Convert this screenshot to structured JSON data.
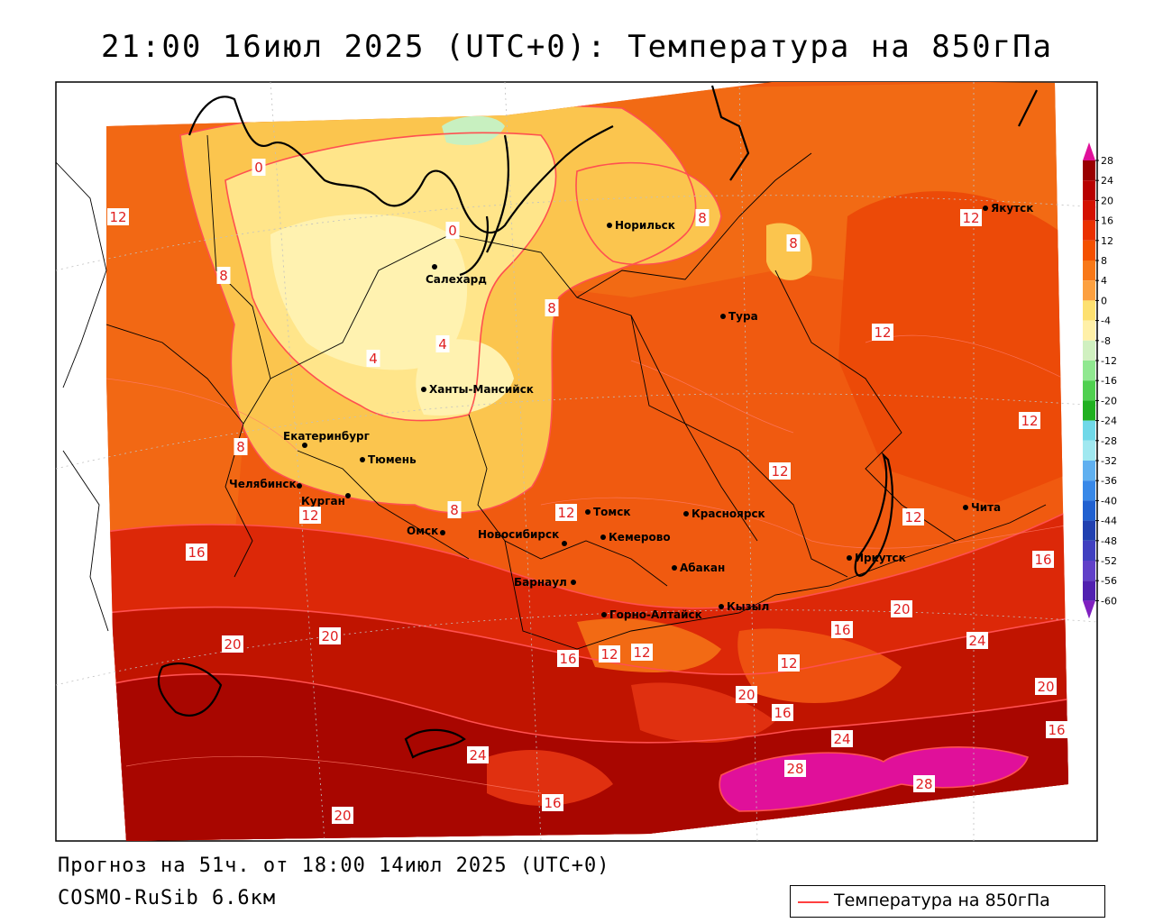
{
  "title": "21:00 16июл 2025 (UTC+0): Температура на 850гПа",
  "forecast_line": "Прогноз на 51ч. от 18:00 14июл 2025 (UTC+0)",
  "model_line": "COSMO-RuSib 6.6км",
  "legend": {
    "label": "Температура на 850гПа",
    "line_color": "#ff4040"
  },
  "colorbar": {
    "ticks": [
      "28",
      "24",
      "20",
      "16",
      "12",
      "8",
      "4",
      "0",
      "-4",
      "-8",
      "-12",
      "-16",
      "-20",
      "-24",
      "-28",
      "-32",
      "-36",
      "-40",
      "-44",
      "-48",
      "-52",
      "-56",
      "-60"
    ],
    "colors": [
      "#9a0000",
      "#b80000",
      "#d41000",
      "#ea3000",
      "#f45000",
      "#f87818",
      "#fca040",
      "#fde070",
      "#fff0a8",
      "#d0f0c0",
      "#90e890",
      "#50d050",
      "#20b020",
      "#70d8e8",
      "#a0e8f0",
      "#60b0f0",
      "#3888e8",
      "#2060d0",
      "#2040b0",
      "#4040c0",
      "#6040c8",
      "#5020b0",
      "#3010a0"
    ],
    "top_color": "#e0109a",
    "bottom_color": "#8020c0"
  },
  "cities": [
    {
      "name": "Норильск"
    },
    {
      "name": "Салехард"
    },
    {
      "name": "Тура"
    },
    {
      "name": "Якутск"
    },
    {
      "name": "Ханты-Мансийск"
    },
    {
      "name": "Екатеринбург"
    },
    {
      "name": "Тюмень"
    },
    {
      "name": "Челябинск"
    },
    {
      "name": "Курган"
    },
    {
      "name": "Омск"
    },
    {
      "name": "Томск"
    },
    {
      "name": "Красноярск"
    },
    {
      "name": "Новосибирск"
    },
    {
      "name": "Кемерово"
    },
    {
      "name": "Абакан"
    },
    {
      "name": "Иркутск"
    },
    {
      "name": "Чита"
    },
    {
      "name": "Барнаул"
    },
    {
      "name": "Горно-Алтайск"
    },
    {
      "name": "Кызыл"
    }
  ],
  "isotherm_labels": [
    "12",
    "8",
    "4",
    "4",
    "0",
    "0",
    "8",
    "8",
    "8",
    "8",
    "12",
    "12",
    "12",
    "12",
    "12",
    "12",
    "16",
    "16",
    "16",
    "16",
    "16",
    "16",
    "20",
    "20",
    "20",
    "20",
    "20",
    "24",
    "24",
    "24",
    "28",
    "28",
    "12",
    "12",
    "12",
    "20",
    "8",
    "16",
    "12"
  ]
}
